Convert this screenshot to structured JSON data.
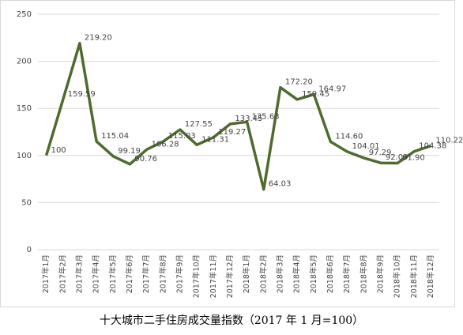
{
  "chart_data": {
    "type": "line",
    "title": "十大城市二手住房成交量指数（2017 年 1 月=100）",
    "categories": [
      "2017年1月",
      "2017年2月",
      "2017年3月",
      "2017年4月",
      "2017年5月",
      "2017年6月",
      "2017年7月",
      "2017年8月",
      "2017年9月",
      "2017年10月",
      "2017年11月",
      "2017年12月",
      "2018年1月",
      "2018年2月",
      "2018年3月",
      "2018年4月",
      "2018年5月",
      "2018年6月",
      "2018年7月",
      "2018年8月",
      "2018年9月",
      "2018年10月",
      "2018年11月",
      "2018年12月"
    ],
    "values": [
      100,
      159.59,
      219.2,
      115.04,
      99.19,
      90.76,
      106.28,
      115.03,
      127.55,
      111.31,
      119.27,
      133.45,
      135.63,
      64.03,
      172.2,
      159.45,
      164.97,
      114.6,
      104.01,
      97.29,
      92.09,
      91.9,
      104.38,
      110.22
    ],
    "value_labels": [
      "100",
      "159.59",
      "219.20",
      "115.04",
      "99.19",
      "90.76",
      "106.28",
      "115.03",
      "127.55",
      "111.31",
      "119.27",
      "133.45",
      "135.63",
      "64.03",
      "172.20",
      "159.45",
      "164.97",
      "114.60",
      "104.01",
      "97.29",
      "92.09",
      "91.90",
      "104.38",
      "110.22"
    ],
    "color": "#4f6b2e",
    "ylim": [
      0,
      250
    ],
    "yticks": [
      0,
      50,
      100,
      150,
      200,
      250
    ],
    "grid": true
  }
}
